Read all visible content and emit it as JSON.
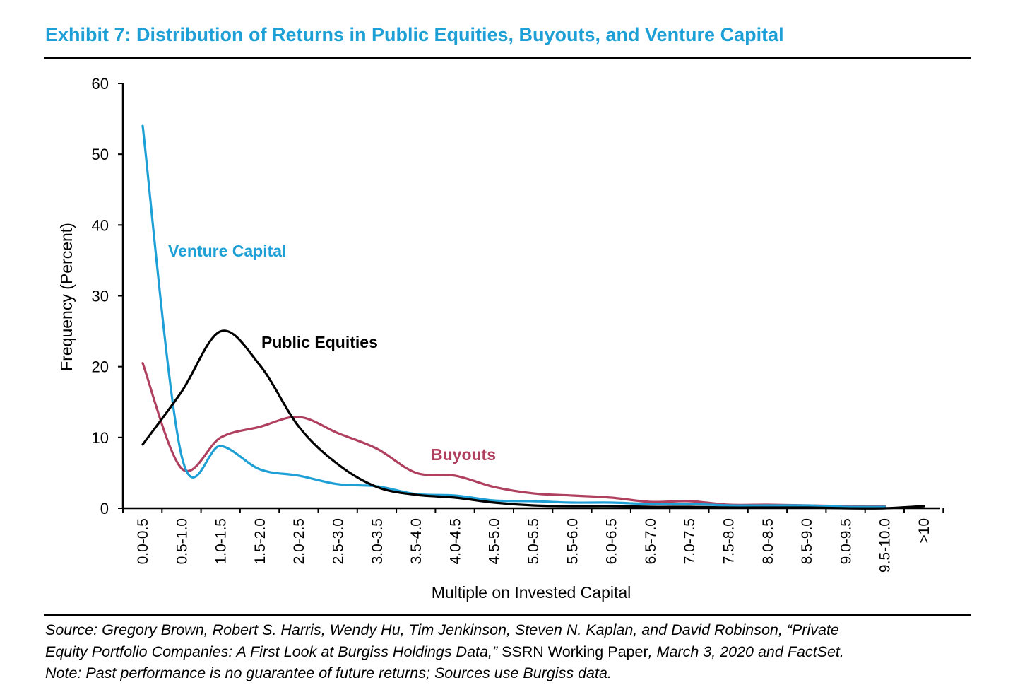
{
  "title": "Exhibit 7: Distribution of Returns in Public Equities, Buyouts, and Venture Capital",
  "colors": {
    "title": "#1ea0d6",
    "venture_capital": "#1ea0d6",
    "public_equities": "#000000",
    "buyouts": "#b0405f"
  },
  "chart_data": {
    "type": "line",
    "xlabel": "Multiple on Invested Capital",
    "ylabel": "Frequency (Percent)",
    "ylim": [
      0,
      60
    ],
    "yticks": [
      "0",
      "10",
      "20",
      "30",
      "40",
      "50",
      "60"
    ],
    "grid": false,
    "legend": "inline labels",
    "categories": [
      "0.0-0.5",
      "0.5-1.0",
      "1.0-1.5",
      "1.5-2.0",
      "2.0-2.5",
      "2.5-3.0",
      "3.0-3.5",
      "3.5-4.0",
      "4.0-4.5",
      "4.5-5.0",
      "5.0-5.5",
      "5.5-6.0",
      "6.0-6.5",
      "6.5-7.0",
      "7.0-7.5",
      "7.5-8.0",
      "8.0-8.5",
      "8.5-9.0",
      "9.0-9.5",
      "9.5-10.0",
      ">10"
    ],
    "series": [
      {
        "name": "Venture Capital",
        "color": "#1ea0d6",
        "values": [
          54.0,
          7.3,
          8.8,
          5.5,
          4.6,
          3.4,
          3.1,
          2.0,
          1.8,
          1.1,
          1.0,
          0.8,
          0.8,
          0.6,
          0.6,
          0.4,
          0.4,
          0.4,
          0.2,
          0.2,
          null
        ]
      },
      {
        "name": "Public Equities",
        "color": "#000000",
        "values": [
          9.0,
          16.5,
          25.0,
          20.2,
          11.5,
          6.2,
          3.0,
          1.9,
          1.5,
          0.8,
          0.4,
          0.3,
          0.3,
          0.2,
          0.2,
          0.1,
          0.1,
          0.1,
          0.0,
          0.0,
          0.3
        ]
      },
      {
        "name": "Buyouts",
        "color": "#b0405f",
        "values": [
          20.5,
          5.6,
          10.0,
          11.5,
          12.9,
          10.6,
          8.4,
          5.0,
          4.6,
          3.0,
          2.1,
          1.8,
          1.5,
          0.9,
          1.0,
          0.5,
          0.5,
          0.4,
          0.3,
          0.3,
          null
        ]
      }
    ]
  },
  "source": {
    "line1": "Source: Gregory Brown, Robert S. Harris, Wendy Hu, Tim Jenkinson, Steven N. Kaplan, and David Robinson, “Private",
    "line2_italic": "Equity Portfolio Companies: A First Look at Burgiss Holdings Data,”",
    "line2_regular": " SSRN Working Paper",
    "line2_end": ", March 3, 2020 and FactSet.",
    "note": "Note: Past performance is no guarantee of future returns; Sources use Burgiss data."
  }
}
